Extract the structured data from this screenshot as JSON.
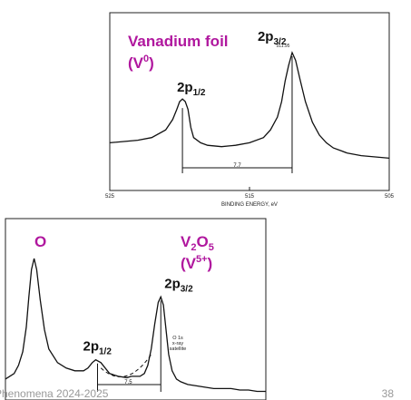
{
  "slide": {
    "footer": "Phenomena 2024-2025",
    "page_number": "38"
  },
  "chart_data": [
    {
      "type": "line",
      "title": "",
      "xlabel": "BINDING ENERGY, eV",
      "ylabel": "",
      "xlim": [
        525,
        505
      ],
      "x_ticks": [
        "525",
        "515",
        "505"
      ],
      "grid": false,
      "annotation_main": "Vanadium foil",
      "annotation_state_base": "V",
      "annotation_state_sup": "0",
      "peak_labels": [
        {
          "base": "2p",
          "sub": "1/2"
        },
        {
          "base": "2p",
          "sub": "3/2"
        }
      ],
      "peak_small_label": "511.95",
      "separation_label": "7.7",
      "series": [
        {
          "x": [
            525,
            523,
            522,
            521,
            520.5,
            520.2,
            520.0,
            519.8,
            519.6,
            519.4,
            519.2,
            519.0,
            518.5,
            518,
            517,
            516,
            515,
            514,
            513.5,
            513,
            512.7,
            512.45,
            512.2,
            511.95,
            511.7,
            511.4,
            511.0,
            510.5,
            510,
            509.5,
            509,
            508.5,
            508,
            507,
            506,
            505
          ],
          "y": [
            30,
            32,
            34,
            40,
            48,
            56,
            62,
            64,
            62,
            56,
            42,
            34,
            30,
            28,
            27,
            28,
            30,
            34,
            40,
            50,
            62,
            78,
            90,
            100,
            94,
            80,
            62,
            46,
            36,
            30,
            26,
            24,
            22,
            20,
            19,
            18
          ]
        }
      ]
    },
    {
      "type": "line",
      "title": "",
      "xlabel": "",
      "ylabel": "",
      "xlim": [
        535,
        505
      ],
      "x_ticks": [],
      "grid": false,
      "annotation_left": "O",
      "annotation_main_base": "V",
      "annotation_main_sub1": "2",
      "annotation_main_mid": "O",
      "annotation_main_sub2": "5",
      "annotation_state_base": "(V",
      "annotation_state_sup": "5+",
      "annotation_state_close": ")",
      "peak_labels": [
        {
          "base": "2p",
          "sub": "1/2"
        },
        {
          "base": "2p",
          "sub": "3/2"
        }
      ],
      "satellite_label": [
        "O 1s",
        "x-ray",
        "satellite"
      ],
      "separation_label": "7.5",
      "series": [
        {
          "x": [
            535,
            534,
            533.5,
            533,
            532.6,
            532.3,
            532.0,
            531.7,
            531.4,
            531,
            530.5,
            530,
            529,
            528,
            527,
            526,
            525.5,
            525,
            524.6,
            524,
            523.5,
            523,
            522,
            521,
            520.5,
            520,
            519.5,
            519,
            518.6,
            518.2,
            517.8,
            517.4,
            517.1,
            516.8,
            516.5,
            516.2,
            515.8,
            515.3,
            514.8,
            514,
            513,
            512,
            511,
            510,
            509,
            508,
            507,
            506,
            505
          ],
          "y": [
            12,
            16,
            22,
            32,
            50,
            72,
            92,
            100,
            92,
            70,
            48,
            34,
            24,
            20,
            18,
            18,
            20,
            24,
            26,
            24,
            20,
            16,
            14,
            13,
            14,
            14,
            14,
            16,
            22,
            34,
            52,
            68,
            72,
            66,
            48,
            30,
            18,
            12,
            10,
            8,
            7,
            6,
            5,
            5,
            5,
            4,
            4,
            3,
            3
          ]
        }
      ]
    }
  ]
}
